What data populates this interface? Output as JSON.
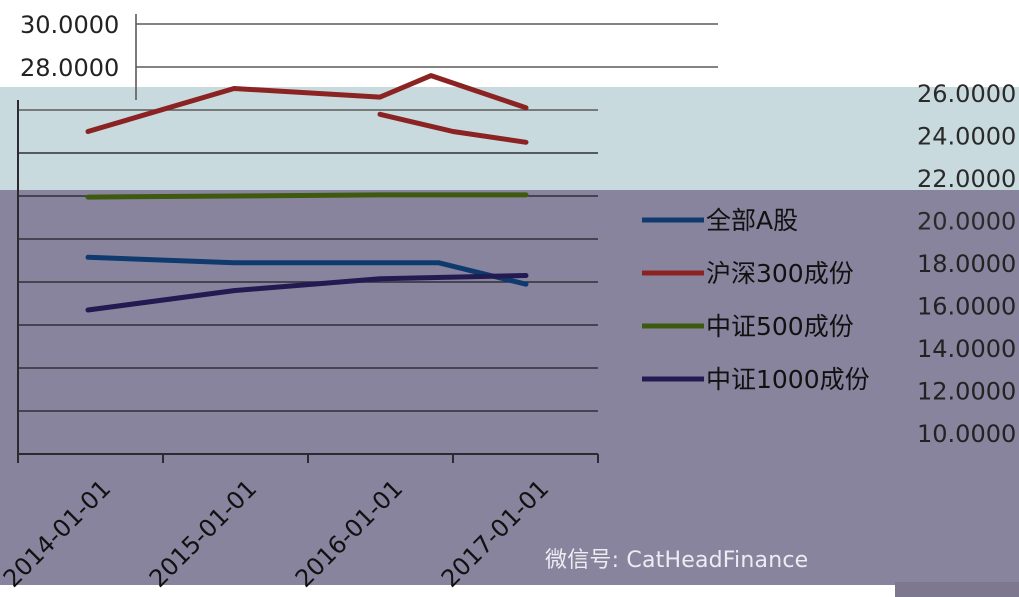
{
  "chart_data": {
    "type": "line",
    "categories": [
      "2014-01-01",
      "2015-01-01",
      "2016-01-01",
      "2017-01-01"
    ],
    "y_ticks_left": [
      "30.0000",
      "28.0000"
    ],
    "y_ticks_right": [
      "26.0000",
      "24.0000",
      "22.0000",
      "20.0000",
      "18.0000",
      "16.0000",
      "14.0000",
      "12.0000",
      "10.0000"
    ],
    "ylim": [
      10,
      30
    ],
    "grid": true,
    "legend_position": "right",
    "series": [
      {
        "name": "全部A股",
        "color": "#0e3a6e",
        "x": [
          0,
          1,
          2,
          2.4,
          3
        ],
        "values": [
          19.15,
          18.9,
          18.9,
          18.9,
          17.9
        ]
      },
      {
        "name": "沪深300成份",
        "color": "#8b2323",
        "x": [
          0,
          1,
          2,
          2.35,
          3
        ],
        "values": [
          25.0,
          27.0,
          26.6,
          27.6,
          26.1
        ]
      },
      {
        "name": "中证500成份",
        "color": "#3d5a0f",
        "x": [
          0,
          1,
          2,
          3
        ],
        "values": [
          21.95,
          22.0,
          22.05,
          22.05
        ]
      },
      {
        "name": "中证1000成份",
        "color": "#241a52",
        "x": [
          0,
          1,
          2,
          3
        ],
        "values": [
          16.7,
          17.6,
          18.15,
          18.3
        ]
      },
      {
        "name": "",
        "color": "#8b2323",
        "x": [
          2,
          2.5,
          3
        ],
        "values": [
          25.8,
          25.0,
          24.5
        ]
      }
    ]
  },
  "watermark": "微信号: CatHeadFinance"
}
